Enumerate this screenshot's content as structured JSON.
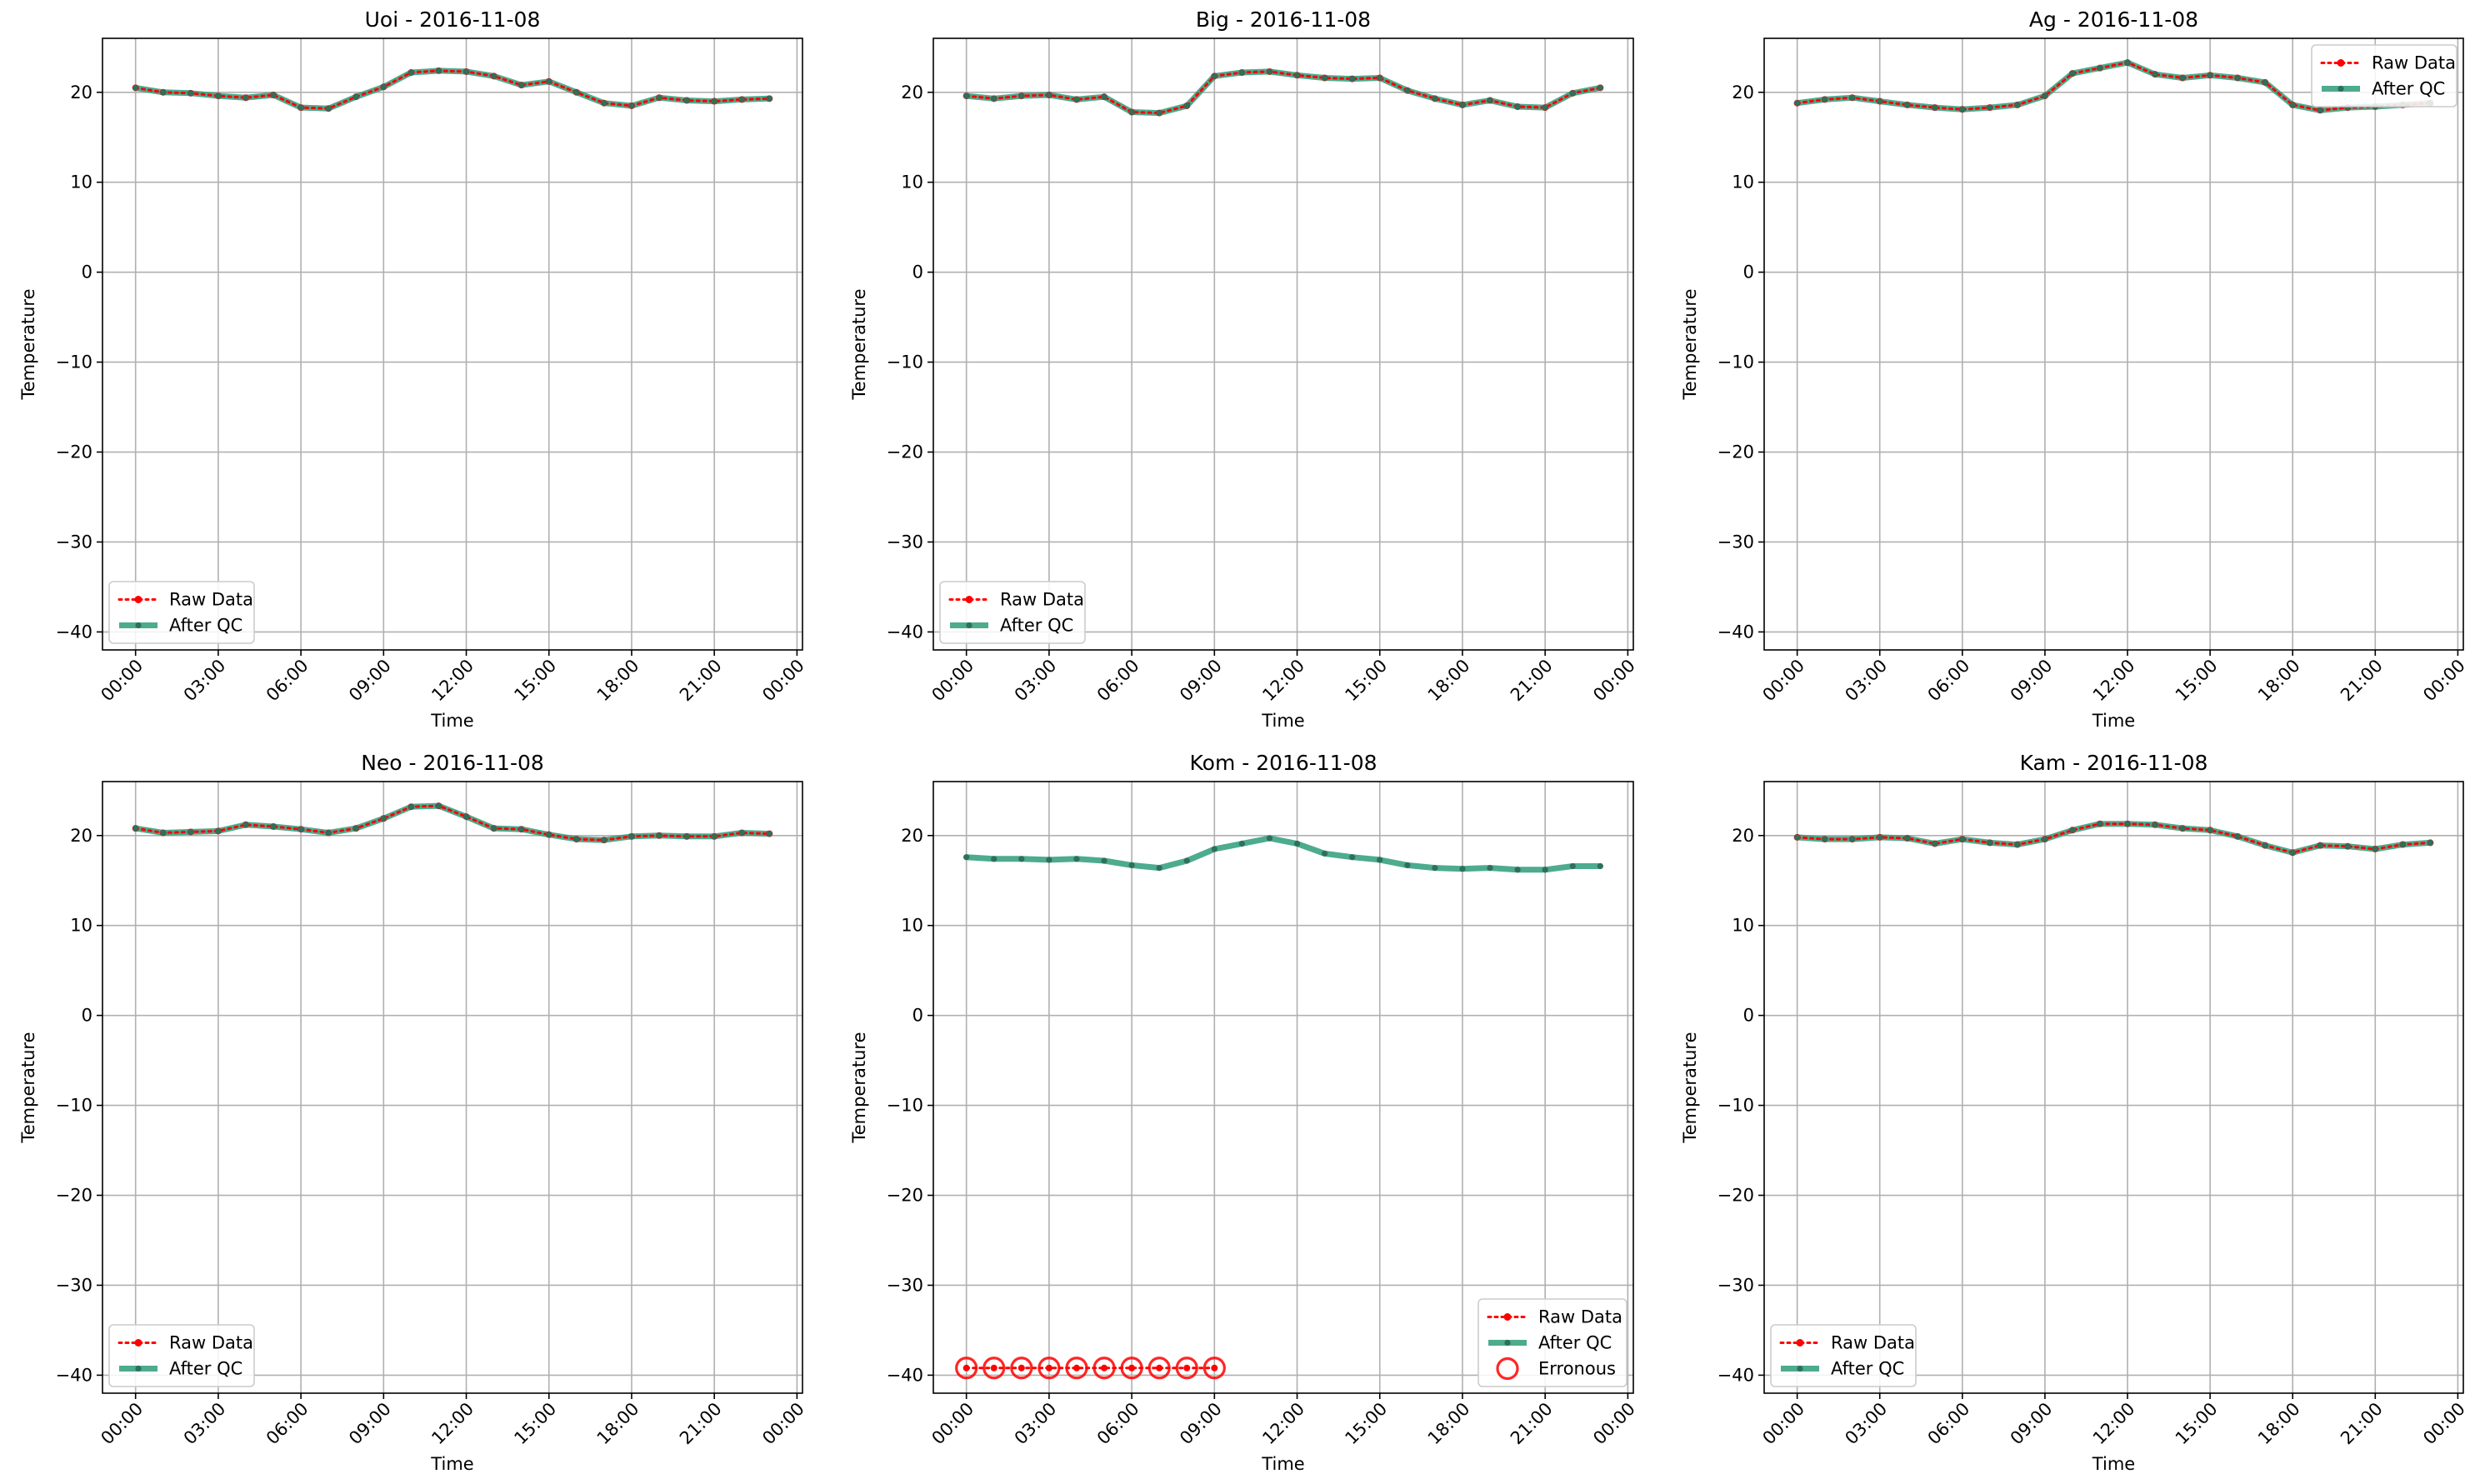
{
  "legend_labels": {
    "raw": "Raw Data",
    "after": "After QC",
    "err": "Erronous"
  },
  "colors": {
    "raw": "#ff0000",
    "after": "#2e9c7a",
    "after_marker": "#2f6f5b",
    "grid": "#b0b0b0",
    "err": "#ff0000"
  },
  "chart_data": [
    {
      "type": "line",
      "title": "Uoi - 2016-11-08",
      "xlabel": "Time",
      "ylabel": "Temperature",
      "xticks": [
        "00:00",
        "03:00",
        "06:00",
        "09:00",
        "12:00",
        "15:00",
        "18:00",
        "21:00",
        "00:00"
      ],
      "yticks": [
        20,
        10,
        0,
        -10,
        -20,
        -30,
        -40
      ],
      "ylim": [
        -42,
        26
      ],
      "xlim_hours": [
        -1.2,
        24.2
      ],
      "legend": "lower left",
      "grid": true,
      "x_hours": [
        0,
        1,
        2,
        3,
        4,
        5,
        6,
        7,
        8,
        9,
        10,
        11,
        12,
        13,
        14,
        15,
        16,
        17,
        18,
        19,
        20,
        21,
        22,
        23
      ],
      "series": [
        {
          "name": "Raw Data",
          "values": [
            20.5,
            20.0,
            19.9,
            19.6,
            19.4,
            19.7,
            18.3,
            18.2,
            19.5,
            20.6,
            22.2,
            22.4,
            22.3,
            21.8,
            20.8,
            21.2,
            20.0,
            18.8,
            18.5,
            19.4,
            19.1,
            19.0,
            19.2,
            19.3
          ]
        },
        {
          "name": "After QC",
          "values": [
            20.5,
            20.0,
            19.9,
            19.6,
            19.4,
            19.7,
            18.3,
            18.2,
            19.5,
            20.6,
            22.2,
            22.4,
            22.3,
            21.8,
            20.8,
            21.2,
            20.0,
            18.8,
            18.5,
            19.4,
            19.1,
            19.0,
            19.2,
            19.3
          ]
        }
      ],
      "erroneous_hours": []
    },
    {
      "type": "line",
      "title": "Big - 2016-11-08",
      "xlabel": "Time",
      "ylabel": "Temperature",
      "xticks": [
        "00:00",
        "03:00",
        "06:00",
        "09:00",
        "12:00",
        "15:00",
        "18:00",
        "21:00",
        "00:00"
      ],
      "yticks": [
        20,
        10,
        0,
        -10,
        -20,
        -30,
        -40
      ],
      "ylim": [
        -42,
        26
      ],
      "xlim_hours": [
        -1.2,
        24.2
      ],
      "legend": "lower left",
      "grid": true,
      "x_hours": [
        0,
        1,
        2,
        3,
        4,
        5,
        6,
        7,
        8,
        9,
        10,
        11,
        12,
        13,
        14,
        15,
        16,
        17,
        18,
        19,
        20,
        21,
        22,
        23
      ],
      "series": [
        {
          "name": "Raw Data",
          "values": [
            19.6,
            19.3,
            19.6,
            19.7,
            19.2,
            19.5,
            17.8,
            17.7,
            18.5,
            21.8,
            22.2,
            22.3,
            21.9,
            21.6,
            21.5,
            21.6,
            20.2,
            19.3,
            18.6,
            19.1,
            18.4,
            18.3,
            19.9,
            20.5
          ]
        },
        {
          "name": "After QC",
          "values": [
            19.6,
            19.3,
            19.6,
            19.7,
            19.2,
            19.5,
            17.8,
            17.7,
            18.5,
            21.8,
            22.2,
            22.3,
            21.9,
            21.6,
            21.5,
            21.6,
            20.2,
            19.3,
            18.6,
            19.1,
            18.4,
            18.3,
            19.9,
            20.5
          ]
        }
      ],
      "erroneous_hours": []
    },
    {
      "type": "line",
      "title": "Ag - 2016-11-08",
      "xlabel": "Time",
      "ylabel": "Temperature",
      "xticks": [
        "00:00",
        "03:00",
        "06:00",
        "09:00",
        "12:00",
        "15:00",
        "18:00",
        "21:00",
        "00:00"
      ],
      "yticks": [
        20,
        10,
        0,
        -10,
        -20,
        -30,
        -40
      ],
      "ylim": [
        -42,
        26
      ],
      "xlim_hours": [
        -1.2,
        24.2
      ],
      "legend": "upper right",
      "grid": true,
      "x_hours": [
        0,
        1,
        2,
        3,
        4,
        5,
        6,
        7,
        8,
        9,
        10,
        11,
        12,
        13,
        14,
        15,
        16,
        17,
        18,
        19,
        20,
        21,
        22,
        23
      ],
      "series": [
        {
          "name": "Raw Data",
          "values": [
            18.8,
            19.2,
            19.4,
            19.0,
            18.6,
            18.3,
            18.1,
            18.3,
            18.6,
            19.6,
            22.1,
            22.7,
            23.3,
            22.0,
            21.6,
            21.9,
            21.6,
            21.1,
            18.6,
            18.0,
            18.3,
            18.4,
            18.6,
            18.8
          ]
        },
        {
          "name": "After QC",
          "values": [
            18.8,
            19.2,
            19.4,
            19.0,
            18.6,
            18.3,
            18.1,
            18.3,
            18.6,
            19.6,
            22.1,
            22.7,
            23.3,
            22.0,
            21.6,
            21.9,
            21.6,
            21.1,
            18.6,
            18.0,
            18.3,
            18.4,
            18.6,
            18.8
          ]
        }
      ],
      "erroneous_hours": []
    },
    {
      "type": "line",
      "title": "Neo - 2016-11-08",
      "xlabel": "Time",
      "ylabel": "Temperature",
      "xticks": [
        "00:00",
        "03:00",
        "06:00",
        "09:00",
        "12:00",
        "15:00",
        "18:00",
        "21:00",
        "00:00"
      ],
      "yticks": [
        20,
        10,
        0,
        -10,
        -20,
        -30,
        -40
      ],
      "ylim": [
        -42,
        26
      ],
      "xlim_hours": [
        -1.2,
        24.2
      ],
      "legend": "lower left",
      "grid": true,
      "x_hours": [
        0,
        1,
        2,
        3,
        4,
        5,
        6,
        7,
        8,
        9,
        10,
        11,
        12,
        13,
        14,
        15,
        16,
        17,
        18,
        19,
        20,
        21,
        22,
        23
      ],
      "series": [
        {
          "name": "Raw Data",
          "values": [
            20.8,
            20.3,
            20.4,
            20.5,
            21.2,
            21.0,
            20.7,
            20.3,
            20.8,
            21.9,
            23.2,
            23.3,
            22.1,
            20.8,
            20.7,
            20.1,
            19.6,
            19.5,
            19.9,
            20.0,
            19.9,
            19.9,
            20.3,
            20.2
          ]
        },
        {
          "name": "After QC",
          "values": [
            20.8,
            20.3,
            20.4,
            20.5,
            21.2,
            21.0,
            20.7,
            20.3,
            20.8,
            21.9,
            23.2,
            23.3,
            22.1,
            20.8,
            20.7,
            20.1,
            19.6,
            19.5,
            19.9,
            20.0,
            19.9,
            19.9,
            20.3,
            20.2
          ]
        }
      ],
      "erroneous_hours": []
    },
    {
      "type": "line",
      "title": "Kom - 2016-11-08",
      "xlabel": "Time",
      "ylabel": "Temperature",
      "xticks": [
        "00:00",
        "03:00",
        "06:00",
        "09:00",
        "12:00",
        "15:00",
        "18:00",
        "21:00",
        "00:00"
      ],
      "yticks": [
        20,
        10,
        0,
        -10,
        -20,
        -30,
        -40
      ],
      "ylim": [
        -42,
        26
      ],
      "xlim_hours": [
        -1.2,
        24.2
      ],
      "legend": "lower right",
      "grid": true,
      "x_hours": [
        0,
        1,
        2,
        3,
        4,
        5,
        6,
        7,
        8,
        9,
        10,
        11,
        12,
        13,
        14,
        15,
        16,
        17,
        18,
        19,
        20,
        21,
        22,
        23
      ],
      "series": [
        {
          "name": "Raw Data",
          "values": [
            -39.2,
            -39.2,
            -39.2,
            -39.2,
            -39.2,
            -39.2,
            -39.2,
            -39.2,
            -39.2,
            -39.2,
            null,
            null,
            null,
            null,
            null,
            null,
            null,
            null,
            null,
            null,
            null,
            null,
            null,
            null
          ]
        },
        {
          "name": "After QC",
          "values": [
            17.6,
            17.4,
            17.4,
            17.3,
            17.4,
            17.2,
            16.7,
            16.4,
            17.2,
            18.5,
            19.1,
            19.7,
            19.1,
            18.0,
            17.6,
            17.3,
            16.7,
            16.4,
            16.3,
            16.4,
            16.2,
            16.2,
            16.6,
            16.6
          ]
        }
      ],
      "erroneous_hours": [
        0,
        1,
        2,
        3,
        4,
        5,
        6,
        7,
        8,
        9
      ]
    },
    {
      "type": "line",
      "title": "Kam - 2016-11-08",
      "xlabel": "Time",
      "ylabel": "Temperature",
      "xticks": [
        "00:00",
        "03:00",
        "06:00",
        "09:00",
        "12:00",
        "15:00",
        "18:00",
        "21:00",
        "00:00"
      ],
      "yticks": [
        20,
        10,
        0,
        -10,
        -20,
        -30,
        -40
      ],
      "ylim": [
        -42,
        26
      ],
      "xlim_hours": [
        -1.2,
        24.2
      ],
      "legend": "lower left",
      "grid": true,
      "x_hours": [
        0,
        1,
        2,
        3,
        4,
        5,
        6,
        7,
        8,
        9,
        10,
        11,
        12,
        13,
        14,
        15,
        16,
        17,
        18,
        19,
        20,
        21,
        22,
        23
      ],
      "series": [
        {
          "name": "Raw Data",
          "values": [
            19.8,
            19.6,
            19.6,
            19.8,
            19.7,
            19.1,
            19.6,
            19.2,
            19.0,
            19.6,
            20.6,
            21.3,
            21.3,
            21.2,
            20.8,
            20.6,
            19.9,
            18.9,
            18.1,
            18.9,
            18.8,
            18.5,
            19.0,
            19.2
          ]
        },
        {
          "name": "After QC",
          "values": [
            19.8,
            19.6,
            19.6,
            19.8,
            19.7,
            19.1,
            19.6,
            19.2,
            19.0,
            19.6,
            20.6,
            21.3,
            21.3,
            21.2,
            20.8,
            20.6,
            19.9,
            18.9,
            18.1,
            18.9,
            18.8,
            18.5,
            19.0,
            19.2
          ]
        }
      ],
      "erroneous_hours": []
    }
  ]
}
